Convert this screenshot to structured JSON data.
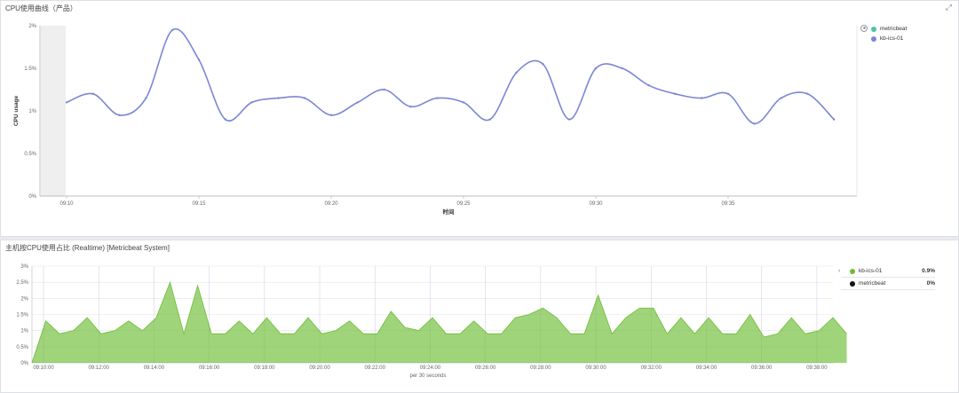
{
  "top_panel": {
    "title": "CPU使用曲线（产品）",
    "expand_icon": "expand-icon"
  },
  "bottom_panel": {
    "title": "主机按CPU使用占比 (Realtime) [Metricbeat System]"
  },
  "legend_top": {
    "items": [
      {
        "label": "metricbeat",
        "color": "#4dc4a6"
      },
      {
        "label": "kb-ics-01",
        "color": "#7b86d4"
      }
    ]
  },
  "legend_bottom": {
    "items": [
      {
        "label": "kb-ics-01",
        "value": "0.9%",
        "color": "#6cbd34"
      },
      {
        "label": "metricbeat",
        "value": "0%",
        "color": "#111111"
      }
    ]
  },
  "chart_data": [
    {
      "type": "line",
      "title": "CPU使用曲线（产品）",
      "xlabel": "时间",
      "ylabel": "CPU usage",
      "x_ticks": [
        "09:10",
        "09:15",
        "09:20",
        "09:25",
        "09:30",
        "09:35"
      ],
      "y_ticks": [
        "0%",
        "0.5%",
        "1%",
        "1.5%",
        "2%"
      ],
      "ylim": [
        0,
        2
      ],
      "grid": false,
      "legend": "right",
      "x_minutes": [
        0,
        1,
        2,
        3,
        4,
        5,
        6,
        7,
        8,
        9,
        10,
        11,
        12,
        13,
        14,
        15,
        16,
        17,
        18,
        19,
        20,
        21,
        22,
        23,
        24,
        25,
        26,
        27,
        28,
        29
      ],
      "series": [
        {
          "name": "kb-ics-01",
          "color": "#7b86d4",
          "values": [
            1.1,
            1.2,
            0.95,
            1.15,
            1.95,
            1.6,
            0.9,
            1.1,
            1.15,
            1.15,
            0.95,
            1.1,
            1.25,
            1.05,
            1.15,
            1.1,
            0.9,
            1.45,
            1.55,
            0.9,
            1.5,
            1.5,
            1.3,
            1.2,
            1.15,
            1.2,
            0.85,
            1.15,
            1.2,
            0.9
          ]
        }
      ]
    },
    {
      "type": "area",
      "title": "主机按CPU使用占比 (Realtime) [Metricbeat System]",
      "xlabel": "per 30 seconds",
      "x_ticks": [
        "09:10:00",
        "09:12:00",
        "09:14:00",
        "09:16:00",
        "09:18:00",
        "09:20:00",
        "09:22:00",
        "09:24:00",
        "09:26:00",
        "09:28:00",
        "09:30:00",
        "09:32:00",
        "09:34:00",
        "09:36:00",
        "09:38:00"
      ],
      "y_ticks": [
        "0%",
        "0.5%",
        "1%",
        "1.5%",
        "2%",
        "2.5%",
        "3%"
      ],
      "ylim": [
        0,
        3
      ],
      "grid": true,
      "legend": "right",
      "series": [
        {
          "name": "kb-ics-01",
          "color": "#6cbd34",
          "values": [
            0,
            1.3,
            0.9,
            1.0,
            1.4,
            0.9,
            1.0,
            1.3,
            1.0,
            1.4,
            2.5,
            0.9,
            2.4,
            0.9,
            0.9,
            1.3,
            0.9,
            1.4,
            0.9,
            0.9,
            1.4,
            0.9,
            1.0,
            1.3,
            0.9,
            0.9,
            1.6,
            1.1,
            1.0,
            1.4,
            0.9,
            0.9,
            1.3,
            0.9,
            0.9,
            1.4,
            1.5,
            1.7,
            1.4,
            0.9,
            0.9,
            2.1,
            0.9,
            1.4,
            1.7,
            1.7,
            0.9,
            1.4,
            0.9,
            1.4,
            0.9,
            0.9,
            1.5,
            0.8,
            0.9,
            1.4,
            0.9,
            1.0,
            1.4,
            0.9
          ]
        }
      ]
    }
  ]
}
